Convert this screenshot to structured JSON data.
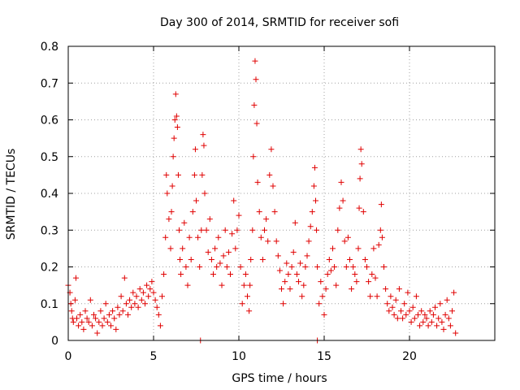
{
  "chart_data": {
    "type": "scatter",
    "title": "Day 300 of 2014, SRMTID for receiver sofi",
    "xlabel": "GPS time / hours",
    "ylabel": "SRMTID / TECUs",
    "xlim": [
      0,
      25
    ],
    "ylim": [
      0,
      0.8
    ],
    "x_ticks": [
      0,
      5,
      10,
      15,
      20
    ],
    "x_tick_labels": [
      "0",
      "5",
      "10",
      "15",
      "20"
    ],
    "y_ticks": [
      0,
      0.1,
      0.2,
      0.3,
      0.4,
      0.5,
      0.6,
      0.7,
      0.8
    ],
    "y_tick_labels": [
      "0",
      "0.1",
      "0.2",
      "0.3",
      "0.4",
      "0.5",
      "0.6",
      "0.7",
      "0.8"
    ],
    "grid": true,
    "marker": "+",
    "marker_color": "#e00000",
    "series": [
      {
        "name": "SRMTID",
        "points": [
          [
            0.0,
            0.15
          ],
          [
            0.1,
            0.13
          ],
          [
            0.15,
            0.1
          ],
          [
            0.2,
            0.08
          ],
          [
            0.25,
            0.06
          ],
          [
            0.3,
            0.05
          ],
          [
            0.4,
            0.11
          ],
          [
            0.45,
            0.17
          ],
          [
            0.5,
            0.06
          ],
          [
            0.6,
            0.04
          ],
          [
            0.7,
            0.07
          ],
          [
            0.8,
            0.05
          ],
          [
            0.9,
            0.03
          ],
          [
            1.0,
            0.08
          ],
          [
            1.1,
            0.06
          ],
          [
            1.2,
            0.05
          ],
          [
            1.3,
            0.11
          ],
          [
            1.4,
            0.04
          ],
          [
            1.5,
            0.07
          ],
          [
            1.6,
            0.06
          ],
          [
            1.7,
            0.02
          ],
          [
            1.8,
            0.05
          ],
          [
            1.9,
            0.08
          ],
          [
            2.0,
            0.04
          ],
          [
            2.1,
            0.06
          ],
          [
            2.2,
            0.1
          ],
          [
            2.3,
            0.05
          ],
          [
            2.4,
            0.07
          ],
          [
            2.5,
            0.04
          ],
          [
            2.6,
            0.08
          ],
          [
            2.7,
            0.06
          ],
          [
            2.8,
            0.03
          ],
          [
            2.9,
            0.09
          ],
          [
            3.0,
            0.07
          ],
          [
            3.1,
            0.12
          ],
          [
            3.2,
            0.08
          ],
          [
            3.3,
            0.17
          ],
          [
            3.4,
            0.1
          ],
          [
            3.5,
            0.07
          ],
          [
            3.6,
            0.11
          ],
          [
            3.7,
            0.09
          ],
          [
            3.8,
            0.13
          ],
          [
            3.9,
            0.1
          ],
          [
            4.0,
            0.12
          ],
          [
            4.1,
            0.09
          ],
          [
            4.2,
            0.14
          ],
          [
            4.3,
            0.11
          ],
          [
            4.4,
            0.13
          ],
          [
            4.5,
            0.1
          ],
          [
            4.6,
            0.15
          ],
          [
            4.7,
            0.12
          ],
          [
            4.8,
            0.14
          ],
          [
            4.9,
            0.16
          ],
          [
            5.0,
            0.13
          ],
          [
            5.1,
            0.11
          ],
          [
            5.2,
            0.09
          ],
          [
            5.3,
            0.07
          ],
          [
            5.4,
            0.04
          ],
          [
            5.5,
            0.12
          ],
          [
            5.6,
            0.18
          ],
          [
            5.7,
            0.28
          ],
          [
            5.75,
            0.45
          ],
          [
            5.8,
            0.4
          ],
          [
            5.9,
            0.33
          ],
          [
            6.0,
            0.25
          ],
          [
            6.05,
            0.35
          ],
          [
            6.1,
            0.42
          ],
          [
            6.15,
            0.5
          ],
          [
            6.2,
            0.55
          ],
          [
            6.25,
            0.6
          ],
          [
            6.3,
            0.67
          ],
          [
            6.35,
            0.61
          ],
          [
            6.4,
            0.58
          ],
          [
            6.45,
            0.45
          ],
          [
            6.5,
            0.3
          ],
          [
            6.55,
            0.22
          ],
          [
            6.6,
            0.18
          ],
          [
            6.7,
            0.25
          ],
          [
            6.8,
            0.32
          ],
          [
            6.9,
            0.2
          ],
          [
            7.0,
            0.15
          ],
          [
            7.1,
            0.28
          ],
          [
            7.2,
            0.22
          ],
          [
            7.3,
            0.35
          ],
          [
            7.4,
            0.45
          ],
          [
            7.45,
            0.52
          ],
          [
            7.5,
            0.38
          ],
          [
            7.6,
            0.28
          ],
          [
            7.7,
            0.2
          ],
          [
            7.8,
            0.3
          ],
          [
            7.85,
            0.45
          ],
          [
            7.9,
            0.56
          ],
          [
            7.95,
            0.53
          ],
          [
            8.0,
            0.4
          ],
          [
            8.1,
            0.3
          ],
          [
            8.2,
            0.24
          ],
          [
            8.3,
            0.33
          ],
          [
            8.4,
            0.22
          ],
          [
            8.5,
            0.18
          ],
          [
            8.6,
            0.25
          ],
          [
            8.7,
            0.2
          ],
          [
            8.8,
            0.28
          ],
          [
            8.9,
            0.21
          ],
          [
            9.0,
            0.15
          ],
          [
            9.1,
            0.23
          ],
          [
            9.2,
            0.3
          ],
          [
            9.3,
            0.2
          ],
          [
            9.4,
            0.24
          ],
          [
            9.5,
            0.18
          ],
          [
            9.6,
            0.29
          ],
          [
            9.7,
            0.38
          ],
          [
            9.8,
            0.25
          ],
          [
            9.9,
            0.3
          ],
          [
            10.0,
            0.34
          ],
          [
            10.1,
            0.2
          ],
          [
            10.2,
            0.1
          ],
          [
            10.3,
            0.15
          ],
          [
            10.4,
            0.18
          ],
          [
            10.5,
            0.12
          ],
          [
            10.6,
            0.08
          ],
          [
            10.65,
            0.15
          ],
          [
            10.7,
            0.22
          ],
          [
            10.8,
            0.3
          ],
          [
            10.85,
            0.5
          ],
          [
            10.9,
            0.64
          ],
          [
            10.95,
            0.76
          ],
          [
            11.0,
            0.71
          ],
          [
            11.05,
            0.59
          ],
          [
            11.1,
            0.43
          ],
          [
            11.2,
            0.35
          ],
          [
            11.3,
            0.28
          ],
          [
            11.4,
            0.22
          ],
          [
            11.5,
            0.3
          ],
          [
            11.6,
            0.33
          ],
          [
            11.7,
            0.27
          ],
          [
            11.8,
            0.45
          ],
          [
            11.9,
            0.52
          ],
          [
            12.0,
            0.42
          ],
          [
            12.1,
            0.35
          ],
          [
            12.2,
            0.27
          ],
          [
            12.3,
            0.23
          ],
          [
            12.4,
            0.19
          ],
          [
            12.5,
            0.14
          ],
          [
            12.6,
            0.1
          ],
          [
            12.7,
            0.16
          ],
          [
            12.8,
            0.21
          ],
          [
            12.9,
            0.18
          ],
          [
            13.0,
            0.14
          ],
          [
            13.1,
            0.2
          ],
          [
            13.2,
            0.24
          ],
          [
            13.3,
            0.32
          ],
          [
            13.4,
            0.18
          ],
          [
            13.5,
            0.16
          ],
          [
            13.6,
            0.21
          ],
          [
            13.7,
            0.12
          ],
          [
            13.8,
            0.15
          ],
          [
            13.9,
            0.2
          ],
          [
            14.0,
            0.23
          ],
          [
            14.1,
            0.27
          ],
          [
            14.2,
            0.31
          ],
          [
            14.3,
            0.35
          ],
          [
            14.4,
            0.42
          ],
          [
            14.45,
            0.47
          ],
          [
            14.5,
            0.38
          ],
          [
            14.55,
            0.3
          ],
          [
            14.6,
            0.2
          ],
          [
            14.7,
            0.1
          ],
          [
            14.8,
            0.16
          ],
          [
            14.9,
            0.12
          ],
          [
            15.0,
            0.07
          ],
          [
            15.1,
            0.14
          ],
          [
            15.2,
            0.18
          ],
          [
            15.3,
            0.22
          ],
          [
            15.4,
            0.19
          ],
          [
            15.5,
            0.25
          ],
          [
            15.6,
            0.2
          ],
          [
            15.7,
            0.15
          ],
          [
            15.8,
            0.3
          ],
          [
            15.9,
            0.36
          ],
          [
            16.0,
            0.43
          ],
          [
            16.1,
            0.38
          ],
          [
            16.2,
            0.27
          ],
          [
            16.3,
            0.2
          ],
          [
            16.4,
            0.28
          ],
          [
            16.5,
            0.22
          ],
          [
            16.6,
            0.14
          ],
          [
            16.7,
            0.2
          ],
          [
            16.8,
            0.18
          ],
          [
            16.9,
            0.16
          ],
          [
            17.0,
            0.25
          ],
          [
            17.05,
            0.36
          ],
          [
            17.1,
            0.44
          ],
          [
            17.15,
            0.52
          ],
          [
            17.2,
            0.48
          ],
          [
            17.3,
            0.35
          ],
          [
            17.4,
            0.22
          ],
          [
            17.5,
            0.2
          ],
          [
            17.6,
            0.16
          ],
          [
            17.7,
            0.12
          ],
          [
            17.8,
            0.18
          ],
          [
            17.9,
            0.25
          ],
          [
            18.0,
            0.17
          ],
          [
            18.1,
            0.12
          ],
          [
            18.2,
            0.26
          ],
          [
            18.3,
            0.3
          ],
          [
            18.35,
            0.37
          ],
          [
            18.4,
            0.28
          ],
          [
            18.5,
            0.2
          ],
          [
            18.6,
            0.14
          ],
          [
            18.7,
            0.1
          ],
          [
            18.8,
            0.08
          ],
          [
            18.9,
            0.12
          ],
          [
            19.0,
            0.09
          ],
          [
            19.1,
            0.07
          ],
          [
            19.2,
            0.11
          ],
          [
            19.3,
            0.06
          ],
          [
            19.4,
            0.14
          ],
          [
            19.5,
            0.08
          ],
          [
            19.6,
            0.06
          ],
          [
            19.7,
            0.1
          ],
          [
            19.8,
            0.07
          ],
          [
            19.9,
            0.13
          ],
          [
            20.0,
            0.08
          ],
          [
            20.1,
            0.05
          ],
          [
            20.2,
            0.09
          ],
          [
            20.3,
            0.06
          ],
          [
            20.4,
            0.12
          ],
          [
            20.5,
            0.07
          ],
          [
            20.6,
            0.04
          ],
          [
            20.7,
            0.08
          ],
          [
            20.8,
            0.05
          ],
          [
            20.9,
            0.07
          ],
          [
            21.0,
            0.06
          ],
          [
            21.1,
            0.04
          ],
          [
            21.2,
            0.08
          ],
          [
            21.3,
            0.05
          ],
          [
            21.4,
            0.07
          ],
          [
            21.5,
            0.09
          ],
          [
            21.6,
            0.04
          ],
          [
            21.7,
            0.06
          ],
          [
            21.8,
            0.1
          ],
          [
            21.9,
            0.05
          ],
          [
            22.0,
            0.03
          ],
          [
            22.1,
            0.07
          ],
          [
            22.2,
            0.11
          ],
          [
            22.3,
            0.06
          ],
          [
            22.4,
            0.04
          ],
          [
            22.5,
            0.08
          ],
          [
            22.6,
            0.13
          ],
          [
            22.7,
            0.02
          ],
          [
            7.75,
            0.0
          ],
          [
            14.6,
            0.0
          ]
        ]
      }
    ]
  }
}
